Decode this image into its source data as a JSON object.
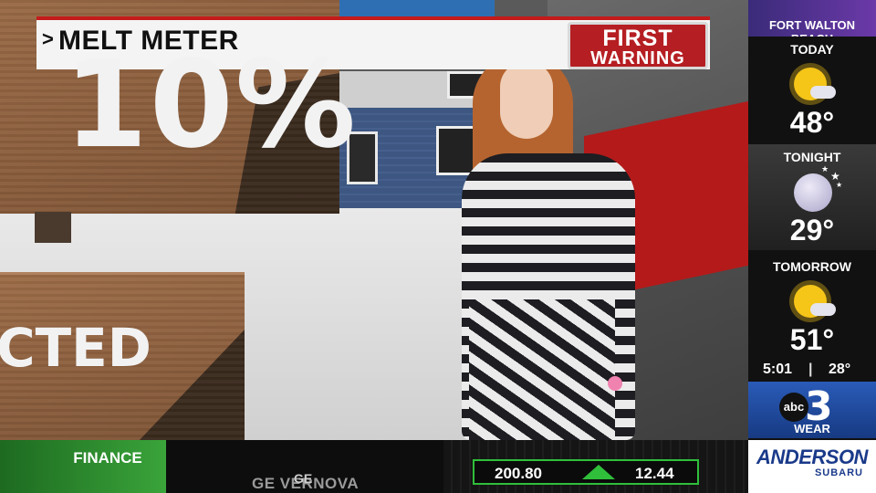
{
  "title_bar": {
    "chevron": ">",
    "title": "MELT METER",
    "badge_line1": "FIRST",
    "badge_line2": "WARNING"
  },
  "scene": {
    "big_value": "10%",
    "bottom_word": "CTED"
  },
  "rail": {
    "location": "FORT WALTON BEACH",
    "forecasts": [
      {
        "label": "TODAY",
        "icon": "sun-cloud-icon",
        "temp": "48°"
      },
      {
        "label": "TONIGHT",
        "icon": "moon-stars-icon",
        "temp": "29°"
      },
      {
        "label": "TOMORROW",
        "icon": "sun-cloud-icon",
        "temp": "51°"
      }
    ],
    "time": "5:01",
    "separator": "|",
    "current_temp": "28°",
    "station_logo": "abc",
    "station_number": "3",
    "station_word": "WEAR",
    "sponsor_name": "ANDERSON",
    "sponsor_sub": "SUBARU"
  },
  "ticker": {
    "category": "FINANCE",
    "company": "GE VERNOVA",
    "company_ghost": "GE",
    "price": "200.80",
    "change": "12.44",
    "direction": "up"
  },
  "colors": {
    "alert_red": "#b51e22",
    "finance_green": "#3aa43a",
    "rail_purple": "#6b39a8",
    "station_blue": "#2a5bb8"
  }
}
